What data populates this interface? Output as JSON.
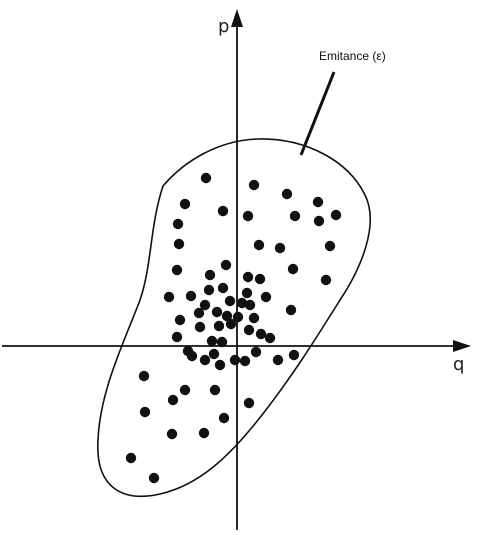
{
  "axes": {
    "vertical_label": "p",
    "horizontal_label": "q"
  },
  "callout": {
    "label": "Emitance (ε)"
  },
  "colors": {
    "ink": "#111111"
  }
}
